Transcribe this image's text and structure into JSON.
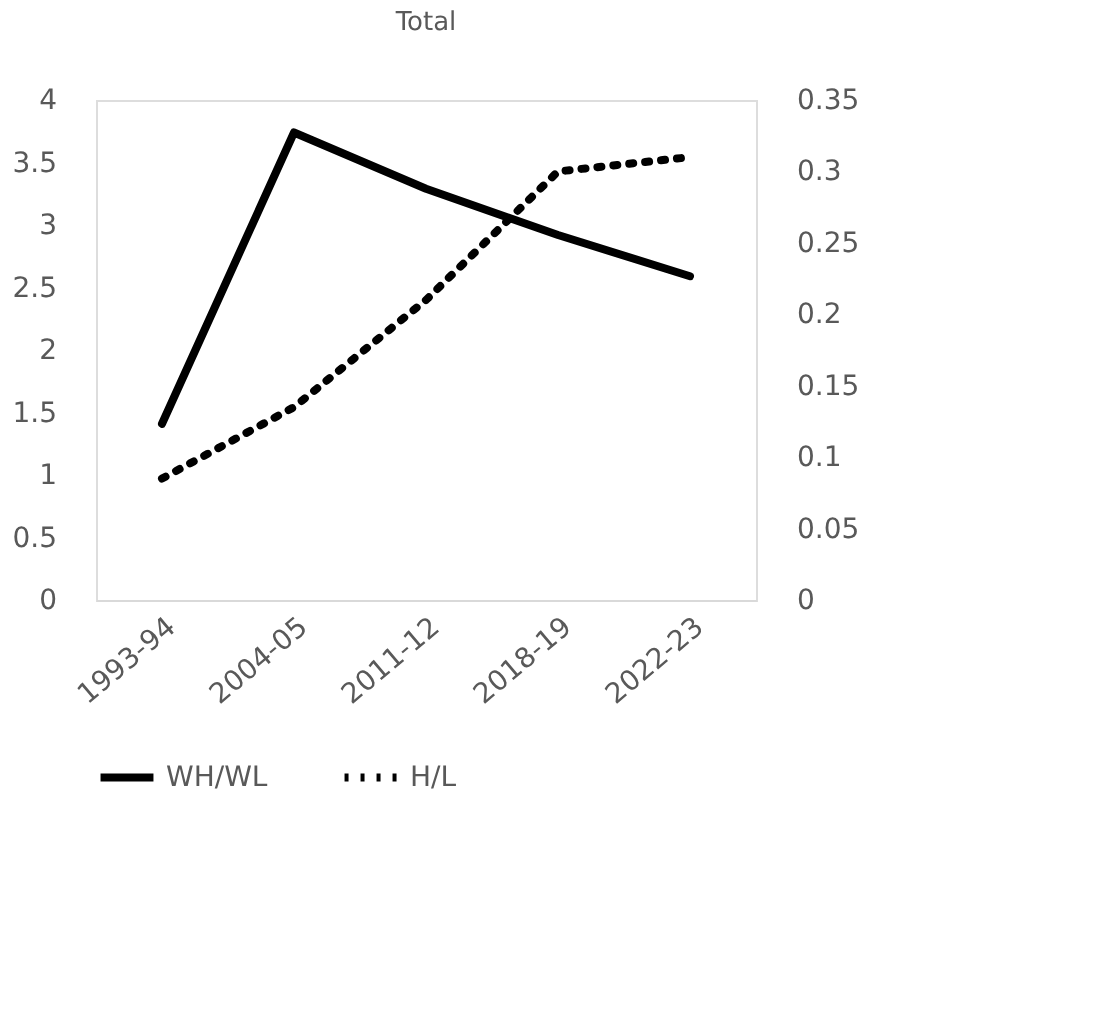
{
  "chart_data": {
    "type": "line",
    "title": "Total",
    "categories": [
      "1993-94",
      "2004-05",
      "2011-12",
      "2018-19",
      "2022-23"
    ],
    "series": [
      {
        "name": "WH/WL",
        "color": "#000000",
        "line_style": "solid",
        "values": [
          1.41,
          3.74,
          3.29,
          2.92,
          2.59
        ]
      },
      {
        "name": "H/L",
        "color": "#000000",
        "line_style": "dotted",
        "axis": "y2",
        "values": [
          0.085,
          0.135,
          0.21,
          0.3,
          0.31
        ]
      }
    ],
    "ylim": [
      0,
      4
    ],
    "yticks": [
      0,
      0.5,
      1,
      1.5,
      2,
      2.5,
      3,
      3.5,
      4
    ],
    "y2lim": [
      0,
      0.35
    ],
    "y2ticks": [
      0,
      0.05,
      0.1,
      0.15,
      0.2,
      0.25,
      0.3,
      0.35
    ],
    "grid": false,
    "legend": "bottom",
    "marker": "none"
  }
}
